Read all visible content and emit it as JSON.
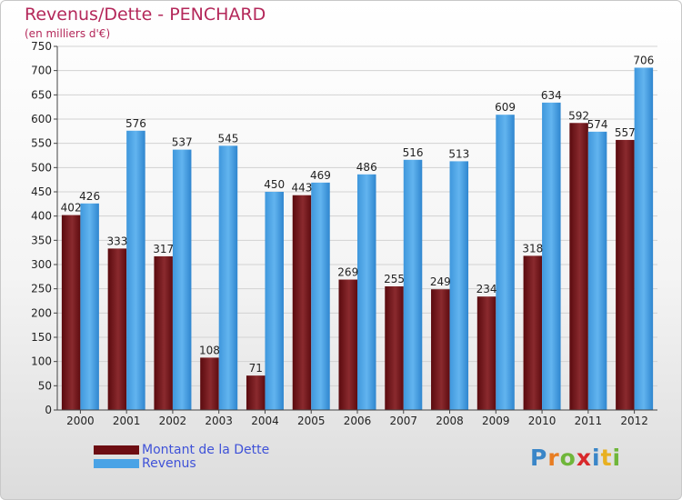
{
  "header": {
    "title": "Revenus/Dette - PENCHARD",
    "subtitle": "(en milliers d'€)"
  },
  "legend": [
    {
      "label": "Montant de la Dette",
      "color": "#6d0d12"
    },
    {
      "label": "Revenus",
      "color": "#4aa3e6"
    }
  ],
  "logo": {
    "letters": [
      {
        "ch": "P",
        "color": "#3a86c8"
      },
      {
        "ch": "r",
        "color": "#e87d22"
      },
      {
        "ch": "o",
        "color": "#6fb63a"
      },
      {
        "ch": "x",
        "color": "#d8282b"
      },
      {
        "ch": "i",
        "color": "#3a86c8"
      },
      {
        "ch": "t",
        "color": "#e8b020"
      },
      {
        "ch": "i",
        "color": "#6fb63a"
      }
    ]
  },
  "chart_data": {
    "type": "bar",
    "title": "Revenus/Dette - PENCHARD",
    "subtitle": "(en milliers d'€)",
    "categories": [
      "2000",
      "2001",
      "2002",
      "2003",
      "2004",
      "2005",
      "2006",
      "2007",
      "2008",
      "2009",
      "2010",
      "2011",
      "2012"
    ],
    "series": [
      {
        "name": "Montant de la Dette",
        "color": "#6d0d12",
        "values": [
          402,
          333,
          317,
          108,
          71,
          443,
          269,
          255,
          249,
          234,
          318,
          592,
          557
        ]
      },
      {
        "name": "Revenus",
        "color": "#4aa3e6",
        "values": [
          426,
          576,
          537,
          545,
          450,
          469,
          486,
          516,
          513,
          609,
          634,
          574,
          706
        ]
      }
    ],
    "ylim": [
      0,
      750
    ],
    "yticks": [
      0,
      50,
      100,
      150,
      200,
      250,
      300,
      350,
      400,
      450,
      500,
      550,
      600,
      650,
      700,
      750
    ],
    "grid": true,
    "legend_position": "bottom-left"
  }
}
